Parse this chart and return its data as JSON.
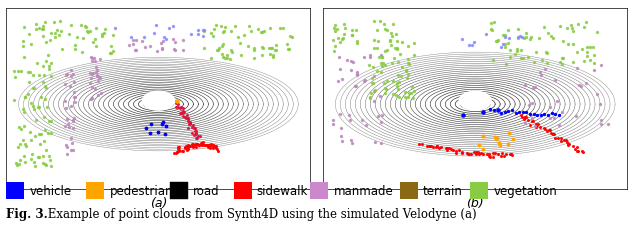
{
  "legend_items": [
    {
      "label": "vehicle",
      "color": "#0000FF"
    },
    {
      "label": "pedestrian",
      "color": "#FFA500"
    },
    {
      "label": "road",
      "color": "#000000"
    },
    {
      "label": "sidewalk",
      "color": "#FF0000"
    },
    {
      "label": "manmade",
      "color": "#CC88CC"
    },
    {
      "label": "terrain",
      "color": "#8B6914"
    },
    {
      "label": "vegetation",
      "color": "#88CC44"
    }
  ],
  "caption_bold": "Fig. 3.",
  "caption_text": " Example of point clouds from Synth4D using the simulated Velodyne (a)",
  "subfig_labels": [
    "(a)",
    "(b)"
  ],
  "background_color": "#ffffff",
  "legend_fontsize": 8.5,
  "caption_fontsize": 8.5
}
